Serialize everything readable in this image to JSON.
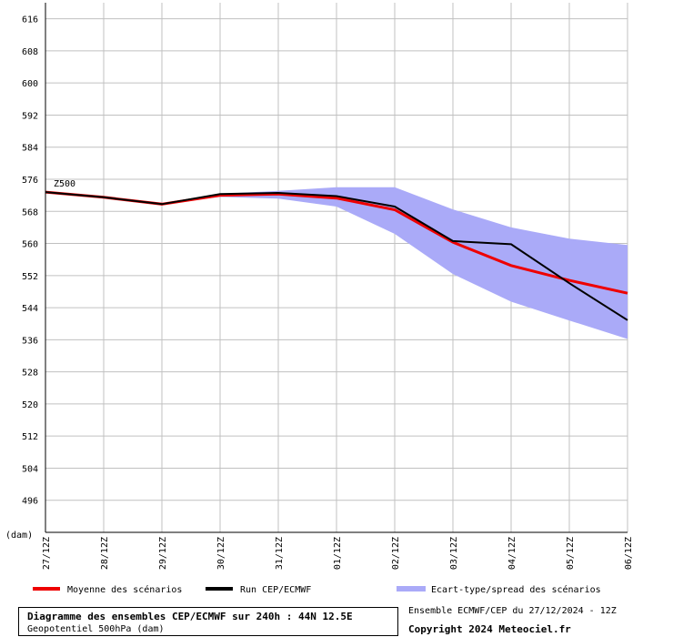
{
  "chart_data": {
    "type": "line",
    "ylabel": "(dam)",
    "series_label": "Z500",
    "ylim": [
      488,
      620
    ],
    "yticks": [
      616,
      608,
      600,
      592,
      584,
      576,
      568,
      560,
      552,
      544,
      536,
      528,
      520,
      512,
      504,
      496
    ],
    "categories": [
      "27/12Z",
      "28/12Z",
      "29/12Z",
      "30/12Z",
      "31/12Z",
      "01/12Z",
      "02/12Z",
      "03/12Z",
      "04/12Z",
      "05/12Z",
      "06/12Z"
    ],
    "series": [
      {
        "name": "Moyenne des scénarios",
        "color": "#ee0000",
        "values": [
          572.8,
          571.5,
          569.8,
          572.0,
          572.3,
          571.3,
          568.4,
          560.3,
          554.5,
          550.8,
          547.6
        ]
      },
      {
        "name": "Run CEP/ECMWF",
        "color": "#000000",
        "values": [
          572.8,
          571.5,
          569.8,
          572.3,
          572.6,
          571.8,
          569.2,
          560.6,
          559.8,
          550.1,
          540.9
        ]
      }
    ],
    "spread": {
      "name": "Ecart-type/spread des scénarios",
      "color": "#aaaaf8",
      "upper": [
        572.8,
        571.5,
        569.8,
        572.4,
        573.1,
        574.0,
        574.0,
        568.5,
        564.0,
        561.2,
        559.6
      ],
      "lower": [
        572.8,
        571.5,
        569.8,
        571.6,
        571.2,
        569.2,
        562.4,
        552.4,
        545.5,
        540.8,
        536.2
      ]
    },
    "grid": true
  },
  "title_box": {
    "main": "Diagramme des ensembles CEP/ECMWF sur 240h : 44N 12.5E",
    "sub": "Geopotentiel 500hPa (dam)"
  },
  "run_info": "Ensemble ECMWF/CEP du 27/12/2024 - 12Z",
  "copyright": "Copyright 2024 Meteociel.fr"
}
